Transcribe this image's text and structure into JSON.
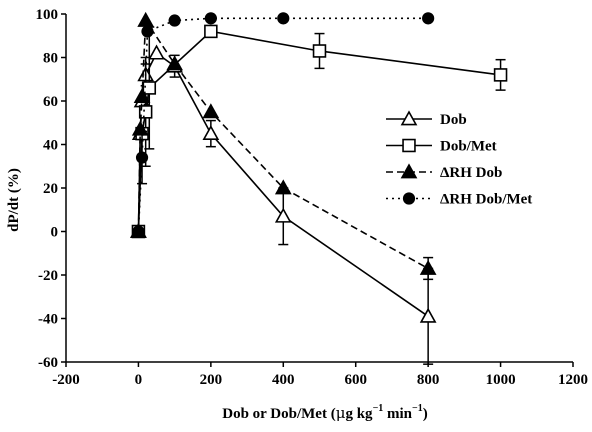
{
  "chart_data": {
    "type": "line",
    "title": "",
    "xlabel": {
      "main": "Dob or Dob/Met (",
      "mu": "μ",
      "g": "g kg",
      "exp1": "−1",
      "min": " min",
      "exp2": "−1",
      "close": ")"
    },
    "ylabel": "dP/dt (%)",
    "xlim": [
      -200,
      1200
    ],
    "ylim": [
      -60,
      100
    ],
    "xticks": [
      -200,
      0,
      200,
      400,
      600,
      800,
      1000,
      1200
    ],
    "yticks": [
      -60,
      -40,
      -20,
      0,
      20,
      40,
      60,
      80,
      100
    ],
    "xtick_labels": [
      "-200",
      "0",
      "200",
      "400",
      "600",
      "800",
      "1000",
      "1200"
    ],
    "ytick_labels": [
      "-60",
      "-40",
      "-20",
      "0",
      "20",
      "40",
      "60",
      "80",
      "100"
    ],
    "grid": false,
    "legend_position": "right-middle",
    "series": [
      {
        "name": "Dob",
        "marker": "triangle-open",
        "line": "solid",
        "x": [
          0,
          5,
          10,
          20,
          50,
          100,
          200,
          400,
          800
        ],
        "y": [
          0,
          45,
          60,
          72,
          82,
          76,
          45,
          7,
          -39
        ],
        "err": [
          0,
          0,
          0,
          5,
          0,
          5,
          6,
          13,
          22
        ]
      },
      {
        "name": "Dob/Met",
        "marker": "square-open",
        "line": "solid",
        "x": [
          0,
          10,
          20,
          30,
          200,
          500,
          1000
        ],
        "y": [
          0,
          45,
          55,
          66,
          92,
          83,
          72
        ],
        "err": [
          0,
          0,
          25,
          28,
          0,
          8,
          7
        ]
      },
      {
        "name": "ΔRH Dob",
        "marker": "triangle-filled",
        "line": "dashed",
        "x": [
          0,
          5,
          10,
          20,
          100,
          200,
          400,
          800
        ],
        "y": [
          0,
          47,
          62,
          97,
          77,
          55,
          20,
          -17
        ],
        "err": [
          0,
          0,
          0,
          0,
          0,
          0,
          0,
          5
        ]
      },
      {
        "name": "ΔRH Dob/Met",
        "marker": "circle-filled",
        "line": "dotted",
        "x": [
          0,
          10,
          25,
          100,
          200,
          400,
          800
        ],
        "y": [
          0,
          34,
          92,
          97,
          98,
          98,
          98
        ],
        "err": [
          0,
          12,
          0,
          0,
          0,
          0,
          0
        ]
      }
    ]
  }
}
